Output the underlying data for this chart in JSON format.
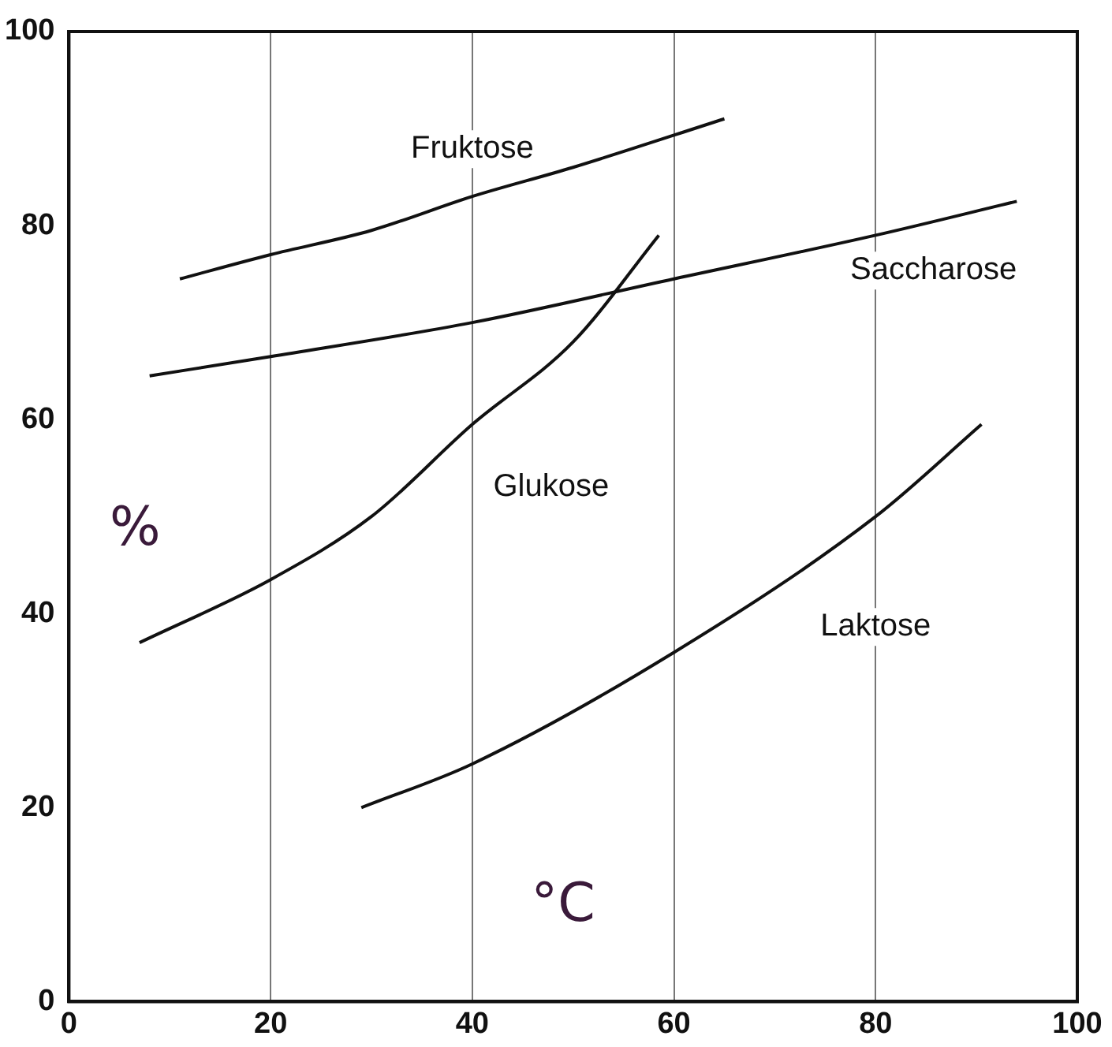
{
  "chart_data": {
    "type": "line",
    "xlabel": "°C",
    "ylabel": "%",
    "xlim": [
      0,
      100
    ],
    "xticks": [
      0,
      20,
      40,
      60,
      80,
      100
    ],
    "ylim": [
      0,
      100
    ],
    "yticks": [
      0,
      20,
      40,
      60,
      80,
      100
    ],
    "grid": "x",
    "legend": false,
    "marker": "none",
    "line_style": "solid",
    "series": [
      {
        "name": "Fruktose",
        "color": "#111111",
        "x": [
          11,
          20,
          30,
          40,
          50,
          65
        ],
        "values": [
          74.5,
          77,
          79.5,
          83,
          86,
          91
        ]
      },
      {
        "name": "Saccharose",
        "color": "#111111",
        "x": [
          8,
          20,
          40,
          60,
          80,
          94
        ],
        "values": [
          64.5,
          66.5,
          70,
          74.5,
          79,
          82.5
        ]
      },
      {
        "name": "Glukose",
        "color": "#111111",
        "x": [
          7,
          20,
          30,
          40,
          50,
          58.5
        ],
        "values": [
          37,
          43.5,
          50,
          59.5,
          68,
          79
        ]
      },
      {
        "name": "Laktose",
        "color": "#111111",
        "x": [
          29,
          40,
          60,
          80,
          90.5
        ],
        "values": [
          20,
          24.5,
          36,
          50,
          59.5
        ]
      }
    ]
  }
}
